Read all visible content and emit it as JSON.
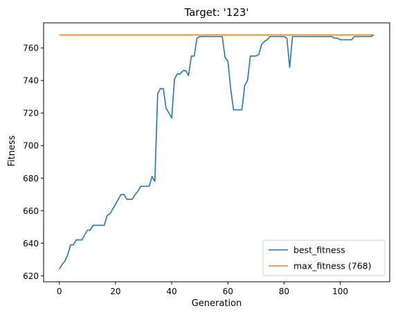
{
  "chart_data": {
    "type": "line",
    "title": "Target: '123'",
    "xlabel": "Generation",
    "ylabel": "Fitness",
    "xlim": [
      -5.6,
      117.6
    ],
    "ylim": [
      616.3,
      775.4
    ],
    "xticks": [
      0,
      20,
      40,
      60,
      80,
      100
    ],
    "yticks": [
      620,
      640,
      660,
      680,
      700,
      720,
      740,
      760
    ],
    "grid": false,
    "legend": "lower-right",
    "series": [
      {
        "name": "best_fitness",
        "color": "#1f77b4",
        "x": [
          0,
          1,
          2,
          3,
          4,
          5,
          6,
          7,
          8,
          9,
          10,
          11,
          12,
          13,
          14,
          15,
          16,
          17,
          18,
          19,
          20,
          21,
          22,
          23,
          24,
          25,
          26,
          27,
          28,
          29,
          30,
          31,
          32,
          33,
          34,
          35,
          36,
          37,
          38,
          39,
          40,
          41,
          42,
          43,
          44,
          45,
          46,
          47,
          48,
          49,
          50,
          51,
          52,
          53,
          54,
          55,
          56,
          57,
          58,
          59,
          60,
          61,
          62,
          63,
          64,
          65,
          66,
          67,
          68,
          69,
          70,
          71,
          72,
          73,
          74,
          75,
          76,
          77,
          78,
          79,
          80,
          81,
          82,
          83,
          84,
          85,
          86,
          87,
          88,
          89,
          90,
          91,
          92,
          93,
          94,
          95,
          96,
          97,
          98,
          99,
          100,
          101,
          102,
          103,
          104,
          105,
          106,
          107,
          108,
          109,
          110,
          111,
          112
        ],
        "values": [
          624,
          627,
          629,
          633,
          639,
          639,
          642,
          642,
          642,
          645,
          648,
          648,
          651,
          651,
          651,
          651,
          651,
          657,
          658,
          661,
          664,
          667,
          670,
          670,
          667,
          667,
          667,
          670,
          672,
          675,
          675,
          675,
          675,
          681,
          678,
          732,
          735,
          735,
          723,
          720,
          717,
          741,
          744,
          744,
          746,
          746,
          743,
          755,
          755,
          766,
          767,
          767,
          767,
          767,
          767,
          767,
          767,
          767,
          767,
          754,
          752,
          735,
          722,
          722,
          722,
          722,
          737,
          740,
          755,
          755,
          755,
          756,
          762,
          764,
          765,
          767,
          767,
          767,
          767,
          767,
          767,
          766,
          748,
          767,
          767,
          767,
          767,
          767,
          767,
          767,
          767,
          767,
          767,
          767,
          767,
          767,
          767,
          767,
          766,
          766,
          765,
          765,
          765,
          765,
          765,
          767,
          767,
          767,
          767,
          767,
          767,
          767,
          768
        ]
      },
      {
        "name": "max_fitness (768)",
        "color": "#ff7f0e",
        "x": [
          0,
          112
        ],
        "values": [
          768,
          768
        ]
      }
    ]
  }
}
